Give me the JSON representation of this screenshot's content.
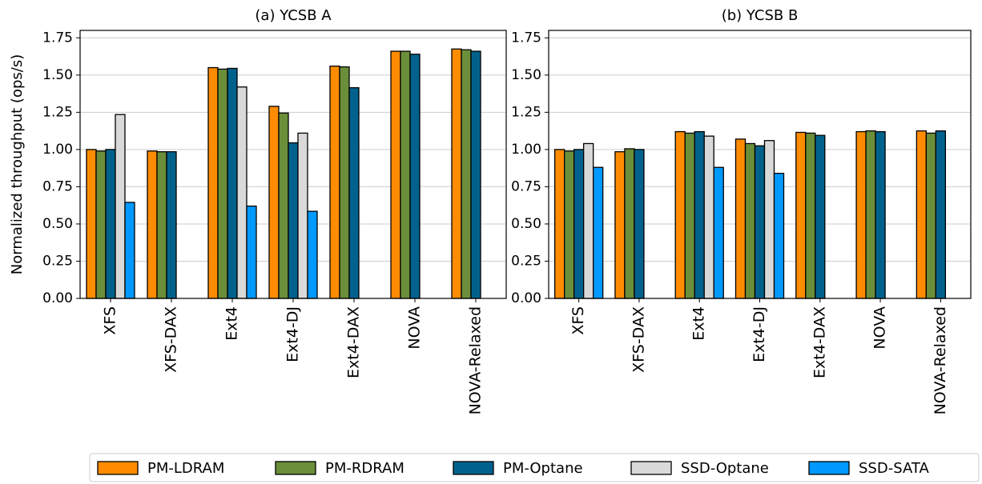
{
  "chart_data": [
    {
      "type": "bar",
      "title": "(a) YCSB A",
      "y_label": "Normalized throughput (ops/s)",
      "categories": [
        "XFS",
        "XFS-DAX",
        "Ext4",
        "Ext4-DJ",
        "Ext4-DAX",
        "NOVA",
        "NOVA-Relaxed"
      ],
      "series": [
        {
          "name": "PM-LDRAM",
          "color": "#ff8c00",
          "values": [
            1.0,
            0.99,
            1.55,
            1.29,
            1.56,
            1.66,
            1.675
          ]
        },
        {
          "name": "PM-RDRAM",
          "color": "#6b8e3a",
          "values": [
            0.99,
            0.985,
            1.54,
            1.245,
            1.555,
            1.66,
            1.67
          ]
        },
        {
          "name": "PM-Optane",
          "color": "#00628c",
          "values": [
            1.0,
            0.985,
            1.545,
            1.045,
            1.415,
            1.64,
            1.66
          ]
        },
        {
          "name": "SSD-Optane",
          "color": "#d9d9d9",
          "values": [
            1.235,
            0,
            1.42,
            1.11,
            0,
            0,
            0
          ]
        },
        {
          "name": "SSD-SATA",
          "color": "#0099ff",
          "values": [
            0.645,
            0,
            0.62,
            0.585,
            0,
            0,
            0
          ]
        }
      ],
      "ylim": [
        0,
        1.8
      ],
      "yticks": [
        {
          "value": 0,
          "label": "0.00"
        },
        {
          "value": 0.25,
          "label": "0.25"
        },
        {
          "value": 0.5,
          "label": "0.50"
        },
        {
          "value": 0.75,
          "label": "0.75"
        },
        {
          "value": 1,
          "label": "1.00"
        },
        {
          "value": 1.25,
          "label": "1.25"
        },
        {
          "value": 1.5,
          "label": "1.50"
        },
        {
          "value": 1.75,
          "label": "1.75"
        }
      ],
      "grid": true
    },
    {
      "type": "bar",
      "title": "(b) YCSB B",
      "categories": [
        "XFS",
        "XFS-DAX",
        "Ext4",
        "Ext4-DJ",
        "Ext4-DAX",
        "NOVA",
        "NOVA-Relaxed"
      ],
      "series": [
        {
          "values": [
            1.0,
            0.985,
            1.12,
            1.07,
            1.115,
            1.12,
            1.125
          ]
        },
        {
          "values": [
            0.99,
            1.005,
            1.11,
            1.04,
            1.11,
            1.125,
            1.11
          ]
        },
        {
          "values": [
            1.0,
            1.0,
            1.12,
            1.025,
            1.095,
            1.12,
            1.125
          ]
        },
        {
          "values": [
            1.04,
            0,
            1.09,
            1.06,
            0,
            0,
            0
          ]
        },
        {
          "values": [
            0.88,
            0,
            0.88,
            0.84,
            0,
            0,
            0
          ]
        }
      ],
      "ylim": [
        0,
        1.8
      ],
      "yticks": [
        {
          "value": 0,
          "label": "0.00"
        },
        {
          "value": 0.25,
          "label": "0.25"
        },
        {
          "value": 0.5,
          "label": "0.50"
        },
        {
          "value": 0.75,
          "label": "0.75"
        },
        {
          "value": 1,
          "label": "1.00"
        },
        {
          "value": 1.25,
          "label": "1.25"
        },
        {
          "value": 1.5,
          "label": "1.50"
        },
        {
          "value": 1.75,
          "label": "1.75"
        }
      ],
      "grid": true
    }
  ]
}
